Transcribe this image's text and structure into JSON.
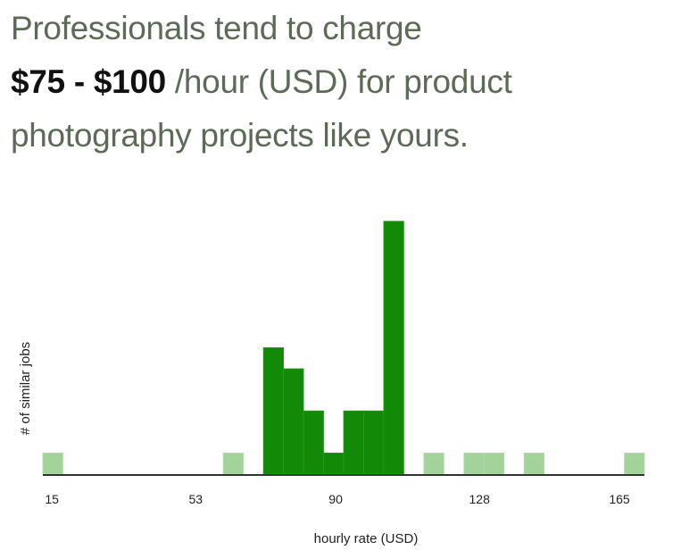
{
  "headline": {
    "line1": "Professionals tend to charge",
    "range": "$75 - $100",
    "after_range": " /hour (USD) for product",
    "line3": "photography projects like yours."
  },
  "colors": {
    "highlight": "#138a07",
    "other": "#a3d39b",
    "axis": "#333333"
  },
  "chart_data": {
    "type": "bar",
    "title": "",
    "xlabel": "hourly rate (USD)",
    "ylabel": "# of similar jobs",
    "xlim": [
      12.6,
      171.6
    ],
    "bin_start": 12.6,
    "bin_width": 5.3,
    "x_ticks": [
      15,
      53,
      90,
      128,
      165
    ],
    "grid": false,
    "bins": [
      {
        "index": 0,
        "count": 1,
        "highlight": false
      },
      {
        "index": 9,
        "count": 1,
        "highlight": false
      },
      {
        "index": 11,
        "count": 6,
        "highlight": true
      },
      {
        "index": 12,
        "count": 5,
        "highlight": true
      },
      {
        "index": 13,
        "count": 3,
        "highlight": true
      },
      {
        "index": 14,
        "count": 1,
        "highlight": true
      },
      {
        "index": 15,
        "count": 3,
        "highlight": true
      },
      {
        "index": 16,
        "count": 3,
        "highlight": true
      },
      {
        "index": 17,
        "count": 12,
        "highlight": true
      },
      {
        "index": 19,
        "count": 1,
        "highlight": false
      },
      {
        "index": 21,
        "count": 1,
        "highlight": false
      },
      {
        "index": 22,
        "count": 1,
        "highlight": false
      },
      {
        "index": 24,
        "count": 1,
        "highlight": false
      },
      {
        "index": 29,
        "count": 1,
        "highlight": false
      }
    ]
  }
}
